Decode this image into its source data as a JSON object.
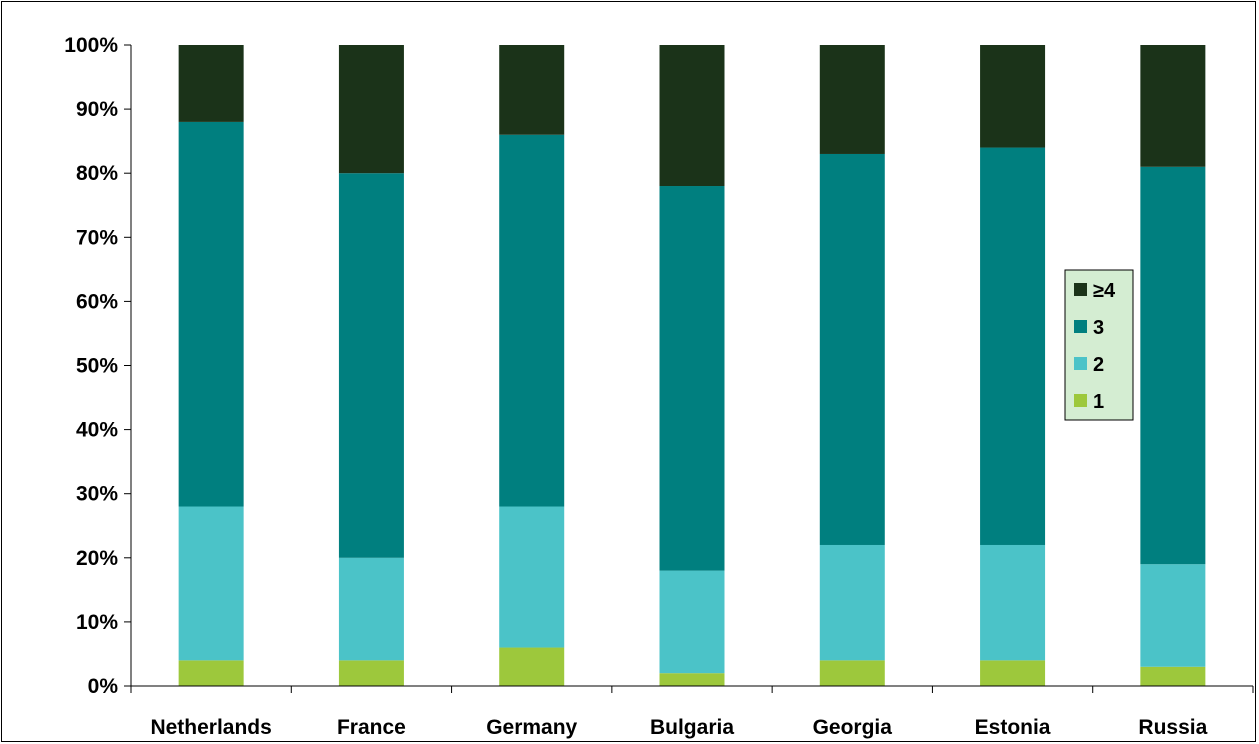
{
  "chart_data": {
    "type": "bar",
    "stacked": true,
    "percent": true,
    "title": "",
    "xlabel": "",
    "ylabel": "",
    "ylim": [
      0,
      100
    ],
    "y_ticks": [
      "0%",
      "10%",
      "20%",
      "30%",
      "40%",
      "50%",
      "60%",
      "70%",
      "80%",
      "90%",
      "100%"
    ],
    "grid": false,
    "legend_position": "right",
    "categories": [
      "Netherlands",
      "France",
      "Germany",
      "Bulgaria",
      "Georgia",
      "Estonia",
      "Russia"
    ],
    "series": [
      {
        "name": "1",
        "color": "#9dc83c",
        "values": [
          4,
          4,
          6,
          2,
          4,
          4,
          3
        ]
      },
      {
        "name": "2",
        "color": "#4bc3c8",
        "values": [
          24,
          16,
          22,
          16,
          18,
          18,
          16
        ]
      },
      {
        "name": "3",
        "color": "#007f7f",
        "values": [
          60,
          60,
          58,
          60,
          61,
          62,
          62
        ]
      },
      {
        "name": "≥4",
        "color": "#1b3319",
        "values": [
          12,
          20,
          14,
          22,
          17,
          16,
          19
        ]
      }
    ],
    "legend_order": [
      "≥4",
      "3",
      "2",
      "1"
    ],
    "legend_background": "#d4edd2"
  }
}
